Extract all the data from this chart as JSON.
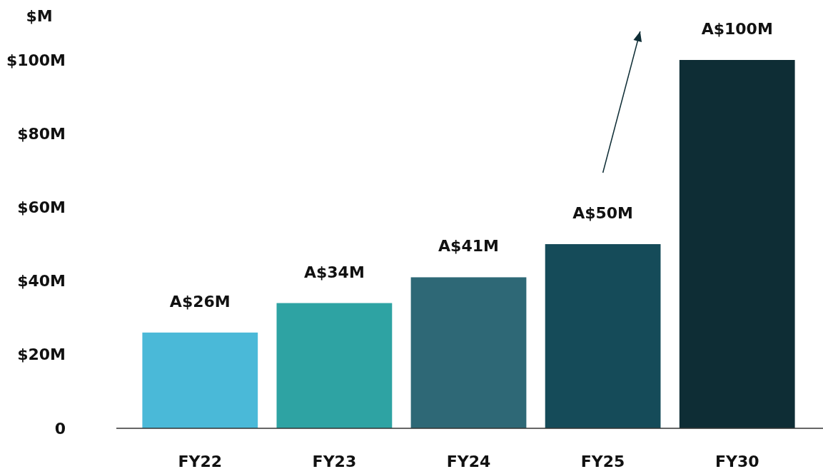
{
  "chart_data": {
    "type": "bar",
    "ylabel": "$M",
    "categories": [
      "FY22",
      "FY23",
      "FY24",
      "FY25",
      "FY30"
    ],
    "values": [
      26,
      34,
      41,
      50,
      100
    ],
    "colors": [
      "#4ab9d8",
      "#2ea3a3",
      "#2e6876",
      "#154b59",
      "#0e2d35"
    ],
    "value_labels": [
      "A$26M",
      "A$34M",
      "A$41M",
      "A$50M",
      "A$100M"
    ],
    "ylim": [
      0,
      100
    ],
    "yticks": [
      {
        "value": 0,
        "label": "0"
      },
      {
        "value": 20,
        "label": "$20M"
      },
      {
        "value": 40,
        "label": "$40M"
      },
      {
        "value": 60,
        "label": "$60M"
      },
      {
        "value": 80,
        "label": "$80M"
      },
      {
        "value": 100,
        "label": "$100M"
      }
    ],
    "grid": false
  }
}
